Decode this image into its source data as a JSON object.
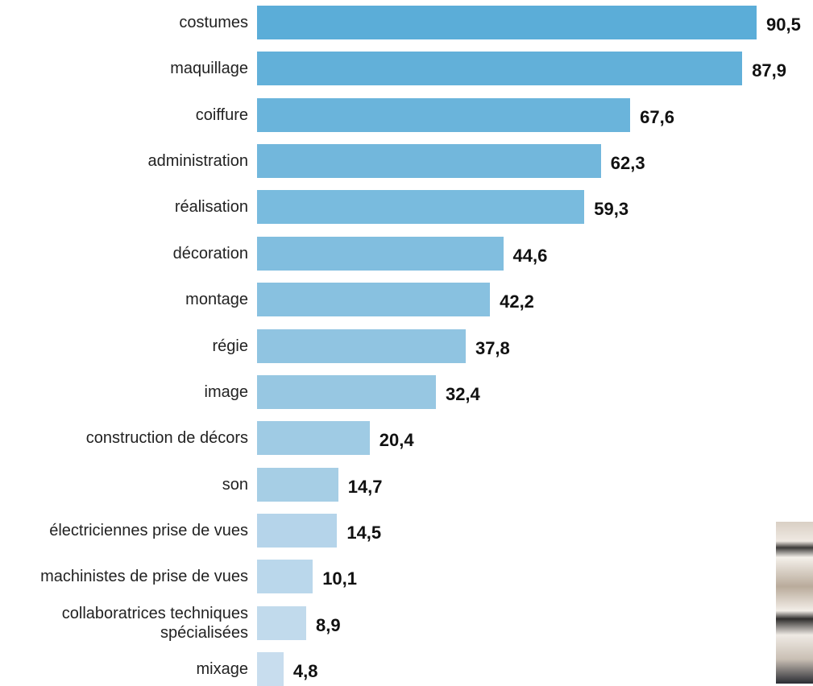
{
  "chart_data": {
    "type": "hbar",
    "categories": [
      "costumes",
      "maquillage",
      "coiffure",
      "administration",
      "réalisation",
      "décoration",
      "montage",
      "régie",
      "image",
      "construction de décors",
      "son",
      "électriciennes prise de vues",
      "machinistes de prise de vues",
      "collaboratrices techniques\nspécialisées",
      "mixage"
    ],
    "values": [
      90.5,
      87.9,
      67.6,
      62.3,
      59.3,
      44.6,
      42.2,
      37.8,
      32.4,
      20.4,
      14.7,
      14.5,
      10.1,
      8.9,
      4.8
    ],
    "value_labels": [
      "90,5",
      "87,9",
      "67,6",
      "62,3",
      "59,3",
      "44,6",
      "42,2",
      "37,8",
      "32,4",
      "20,4",
      "14,7",
      "14,5",
      "10,1",
      "8,9",
      "4,8"
    ],
    "colors": [
      "#5badd8",
      "#62b0d9",
      "#6ab4db",
      "#72b7dc",
      "#79bbde",
      "#81bedf",
      "#88c1e0",
      "#90c4e1",
      "#97c7e2",
      "#9fcbe4",
      "#a6cee5",
      "#b5d4ea",
      "#bad7eb",
      "#c1daec",
      "#c8ddee"
    ]
  }
}
